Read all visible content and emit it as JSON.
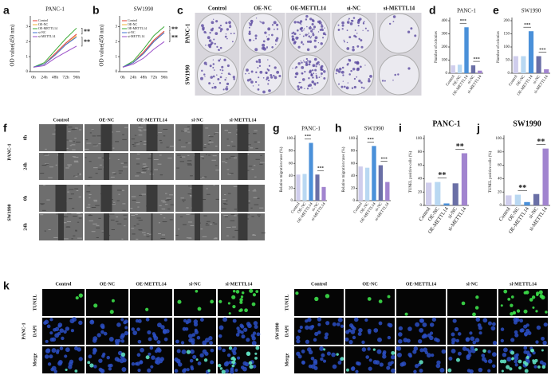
{
  "panels": {
    "labels": [
      "a",
      "b",
      "c",
      "d",
      "e",
      "f",
      "g",
      "h",
      "i",
      "j",
      "k"
    ]
  },
  "chart_data": [
    {
      "type": "line",
      "title": "PANC-1",
      "ylabel": "OD value(450 nm)",
      "categories": [
        "0h",
        "24h",
        "48h",
        "72h",
        "96h"
      ],
      "series": [
        {
          "name": "Control",
          "color": "#e03c31",
          "values": [
            0.3,
            0.5,
            1.2,
            1.9,
            2.5
          ]
        },
        {
          "name": "OE-NC",
          "color": "#f2b233",
          "values": [
            0.3,
            0.5,
            1.1,
            1.8,
            2.4
          ]
        },
        {
          "name": "OE-METTL14",
          "color": "#3aaa35",
          "values": [
            0.3,
            0.6,
            1.4,
            2.2,
            2.9
          ]
        },
        {
          "name": "si-NC",
          "color": "#3d6fd1",
          "values": [
            0.3,
            0.5,
            1.1,
            1.8,
            2.3
          ]
        },
        {
          "name": "si-METTL14",
          "color": "#9b4fc9",
          "values": [
            0.3,
            0.4,
            0.9,
            1.3,
            1.7
          ]
        }
      ],
      "ylim": [
        0,
        3.5
      ],
      "yticks": [
        0,
        1,
        2,
        3
      ],
      "annotations": [
        "**",
        "**"
      ]
    },
    {
      "type": "line",
      "title": "SW1990",
      "ylabel": "OD value(450 nm)",
      "categories": [
        "0h",
        "24h",
        "48h",
        "72h",
        "96h"
      ],
      "series": [
        {
          "name": "Control",
          "color": "#e03c31",
          "values": [
            0.3,
            0.6,
            1.3,
            2.1,
            2.7
          ]
        },
        {
          "name": "OE-NC",
          "color": "#f2b233",
          "values": [
            0.3,
            0.6,
            1.2,
            2.0,
            2.6
          ]
        },
        {
          "name": "OE-METTL14",
          "color": "#3aaa35",
          "values": [
            0.3,
            0.7,
            1.5,
            2.4,
            3.0
          ]
        },
        {
          "name": "si-NC",
          "color": "#3d6fd1",
          "values": [
            0.3,
            0.6,
            1.2,
            2.0,
            2.6
          ]
        },
        {
          "name": "si-METTL14",
          "color": "#9b4fc9",
          "values": [
            0.3,
            0.5,
            0.9,
            1.5,
            2.0
          ]
        }
      ],
      "ylim": [
        0,
        3.5
      ],
      "yticks": [
        0,
        1,
        2,
        3
      ],
      "annotations": [
        "**",
        "**"
      ]
    },
    {
      "type": "bar",
      "title": "PANC-1",
      "ylabel": "Number of colonies",
      "categories": [
        "Control",
        "OE-NC",
        "OE-METTL14",
        "si-NC",
        "si-METTL14"
      ],
      "values": [
        60,
        65,
        350,
        60,
        20
      ],
      "colors": [
        "#cfcdec",
        "#b9d8f2",
        "#4a90d9",
        "#6a6fa6",
        "#a184cf"
      ],
      "ylim": [
        0,
        400
      ],
      "yticks": [
        0,
        100,
        200,
        300,
        400
      ],
      "annotations": [
        "***",
        "***"
      ]
    },
    {
      "type": "bar",
      "title": "SW1990",
      "ylabel": "Number of colonies",
      "categories": [
        "Control",
        "OE-NC",
        "OE-METTL14",
        "si-NC",
        "si-METTL14"
      ],
      "values": [
        65,
        65,
        160,
        65,
        15
      ],
      "colors": [
        "#cfcdec",
        "#b9d8f2",
        "#4a90d9",
        "#6a6fa6",
        "#a184cf"
      ],
      "ylim": [
        0,
        200
      ],
      "yticks": [
        0,
        50,
        100,
        150,
        200
      ],
      "annotations": [
        "***",
        "***"
      ]
    },
    {
      "type": "bar",
      "title": "PANC-1",
      "ylabel": "Relative migration rates (%)",
      "categories": [
        "Control",
        "OE-NC",
        "OE-METTL14",
        "si-NC",
        "si-METTL14"
      ],
      "values": [
        42,
        43,
        93,
        42,
        22
      ],
      "colors": [
        "#cfcdec",
        "#b9d8f2",
        "#4a90d9",
        "#6a6fa6",
        "#a184cf"
      ],
      "ylim": [
        0,
        100
      ],
      "yticks": [
        0,
        20,
        40,
        60,
        80,
        100
      ],
      "annotations": [
        "***",
        "***"
      ]
    },
    {
      "type": "bar",
      "title": "SW1990",
      "ylabel": "Relative migration rates (%)",
      "categories": [
        "Control",
        "OE-NC",
        "OE-METTL14",
        "si-NC",
        "si-METTL14"
      ],
      "values": [
        55,
        53,
        88,
        57,
        30
      ],
      "colors": [
        "#cfcdec",
        "#b9d8f2",
        "#4a90d9",
        "#6a6fa6",
        "#a184cf"
      ],
      "ylim": [
        0,
        100
      ],
      "yticks": [
        0,
        20,
        40,
        60,
        80,
        100
      ],
      "annotations": [
        "***",
        "***"
      ]
    },
    {
      "type": "bar",
      "title": "PANC-1",
      "ylabel": "TUNEL positive cells (%)",
      "categories": [
        "Control",
        "OE-NC",
        "OE-METTL14",
        "si-NC",
        "si-METTL14"
      ],
      "values": [
        34,
        35,
        3,
        33,
        78
      ],
      "colors": [
        "#cfcdec",
        "#b9d8f2",
        "#4a90d9",
        "#6a6fa6",
        "#a184cf"
      ],
      "ylim": [
        0,
        100
      ],
      "yticks": [
        0,
        20,
        40,
        60,
        80,
        100
      ],
      "annotations": [
        "**",
        "**"
      ]
    },
    {
      "type": "bar",
      "title": "SW1990",
      "ylabel": "TUNEL positive cells (%)",
      "categories": [
        "Control",
        "OE-NC",
        "OE-METTL14",
        "si-NC",
        "si-METTL14"
      ],
      "values": [
        15,
        16,
        5,
        17,
        85
      ],
      "colors": [
        "#cfcdec",
        "#b9d8f2",
        "#4a90d9",
        "#6a6fa6",
        "#a184cf"
      ],
      "ylim": [
        0,
        100
      ],
      "yticks": [
        0,
        20,
        40,
        60,
        80,
        100
      ],
      "annotations": [
        "**",
        "**"
      ]
    }
  ],
  "colony_assay": {
    "columns": [
      "Control",
      "OE-NC",
      "OE-METTL14",
      "si-NC",
      "si-METTL14"
    ],
    "rows": [
      "PANC-1",
      "SW1990"
    ]
  },
  "wound_healing": {
    "columns": [
      "Control",
      "OE-NC",
      "OE-METTL14",
      "si-NC",
      "si-METTL14"
    ],
    "groups": [
      "PANC-1",
      "SW1990"
    ],
    "times": [
      "0h",
      "24h"
    ]
  },
  "tunel": {
    "columns": [
      "Control",
      "OE-NC",
      "OE-METTL14",
      "si-NC",
      "si-METTL14"
    ],
    "groups": [
      "PANC-1",
      "SW1990"
    ],
    "stains": [
      "TUNEL",
      "DAPI",
      "Merge"
    ]
  }
}
